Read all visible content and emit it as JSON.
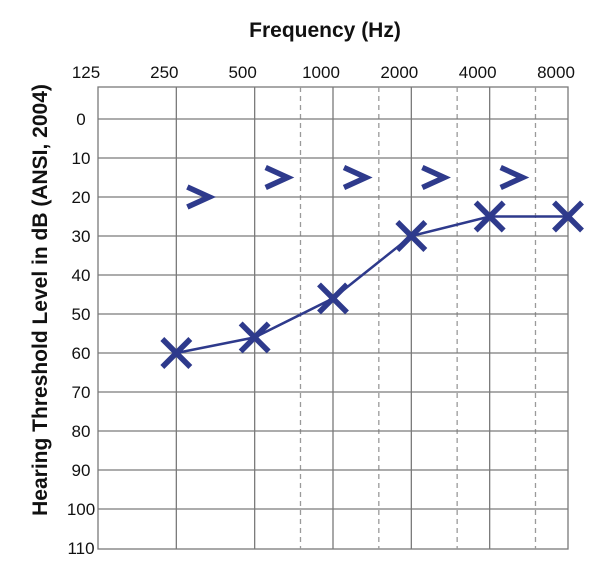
{
  "chart_data": {
    "type": "line",
    "title": "Frequency (Hz)",
    "xlabel": "",
    "ylabel": "Hearing Threshold Level in dB (ANSI, 2004)",
    "x_scale": "log2",
    "x_ticks": [
      125,
      250,
      500,
      1000,
      2000,
      4000,
      8000
    ],
    "x_tick_labels": [
      "125",
      "250",
      "500",
      "1000",
      "2000",
      "4000",
      "8000"
    ],
    "x_interoctave_ticks": [
      750,
      1500,
      3000,
      6000
    ],
    "y_ticks": [
      0,
      10,
      20,
      30,
      40,
      50,
      60,
      70,
      80,
      90,
      100,
      110
    ],
    "ylim": [
      110,
      0
    ],
    "y_inverted": true,
    "grid": true,
    "color": "#2e3a8c",
    "series": [
      {
        "marker": "X",
        "x": [
          250,
          500,
          1000,
          2000,
          4000,
          8000
        ],
        "values": [
          60,
          56,
          46,
          30,
          25,
          25
        ],
        "connected": true
      },
      {
        "marker": ">",
        "x": [
          250,
          500,
          1000,
          2000,
          4000
        ],
        "values": [
          20,
          15,
          15,
          15,
          15
        ],
        "connected": false
      }
    ]
  }
}
